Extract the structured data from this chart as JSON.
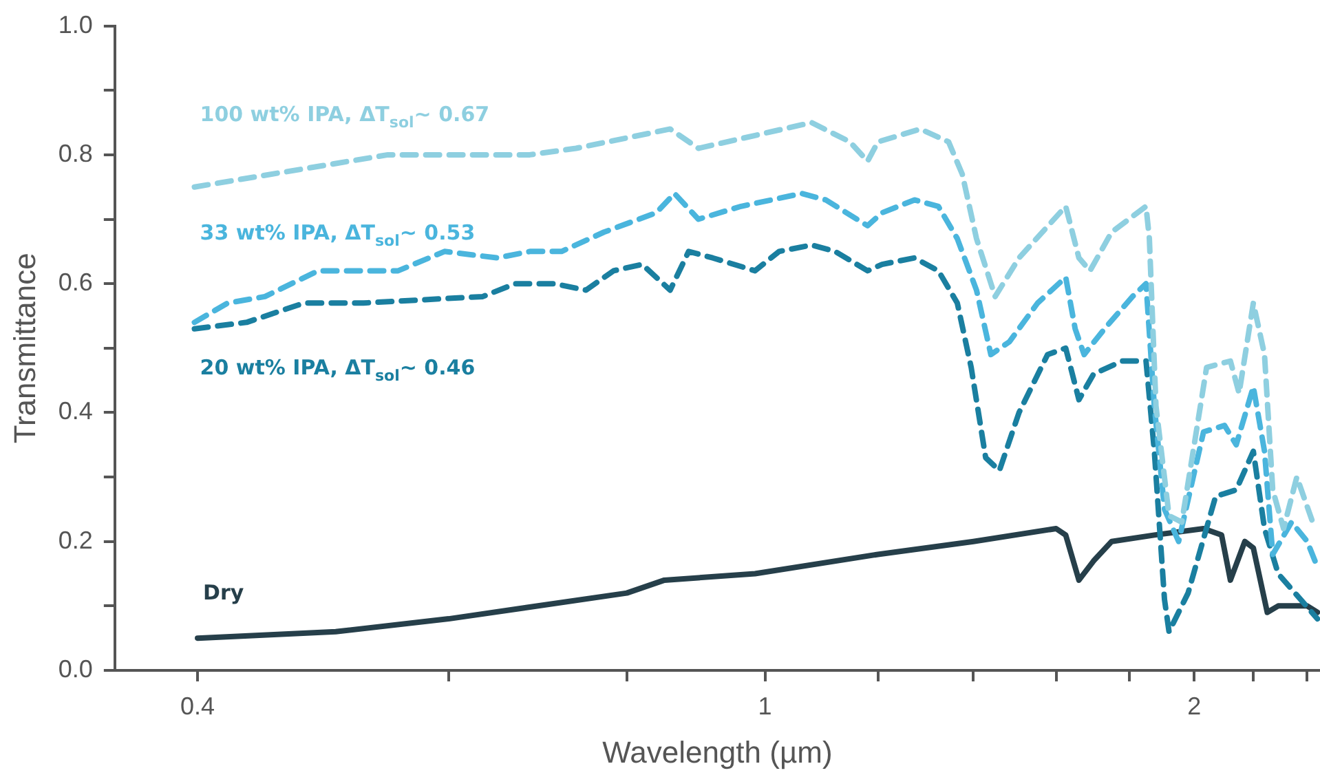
{
  "chart_data": {
    "type": "line",
    "xlabel": "Wavelength (µm)",
    "ylabel": "Transmittance",
    "log": "x",
    "grid": false,
    "legend": false,
    "marker": "none",
    "xlim": [
      0.35,
      2.45
    ],
    "xticks": [
      0.4,
      {
        "value": 0.6,
        "label": null
      },
      {
        "value": 0.8,
        "label": null
      },
      1,
      {
        "value": 1.2,
        "label": null
      },
      {
        "value": 1.4,
        "label": null
      },
      {
        "value": 1.6,
        "label": null
      },
      {
        "value": 1.8,
        "label": null
      },
      2,
      {
        "value": 2.2,
        "label": null
      },
      {
        "value": 2.4,
        "label": null
      }
    ],
    "ylim": [
      0,
      1
    ],
    "yticks": [
      {
        "value": 0,
        "label": "0.0"
      },
      {
        "value": 0.1,
        "label": null
      },
      {
        "value": 0.2,
        "label": "0.2"
      },
      {
        "value": 0.3,
        "label": null
      },
      {
        "value": 0.4,
        "label": "0.4"
      },
      {
        "value": 0.5,
        "label": null
      },
      {
        "value": 0.6,
        "label": "0.6"
      },
      {
        "value": 0.7,
        "label": null
      },
      {
        "value": 0.8,
        "label": "0.8"
      },
      {
        "value": 0.9,
        "label": null
      },
      {
        "value": 1,
        "label": "1.0"
      }
    ],
    "series": [
      {
        "name": "100 wt% IPA, ΔT$_{sol}$~ 0.67",
        "color": "#8ecfe0",
        "line_style": "dashed",
        "x": [
          0.398,
          0.544,
          0.684,
          0.737,
          0.858,
          0.898,
          0.984,
          1.078,
          1.147,
          1.18,
          1.2,
          1.285,
          1.345,
          1.375,
          1.407,
          1.45,
          1.507,
          1.625,
          1.66,
          1.69,
          1.75,
          1.85,
          1.86,
          1.88,
          1.92,
          1.96,
          2.04,
          2.12,
          2.15,
          2.2,
          2.24,
          2.27,
          2.31,
          2.36,
          2.43
        ],
        "values": [
          0.75,
          0.8,
          0.8,
          0.81,
          0.84,
          0.81,
          0.83,
          0.85,
          0.82,
          0.79,
          0.82,
          0.84,
          0.82,
          0.77,
          0.67,
          0.58,
          0.64,
          0.72,
          0.64,
          0.62,
          0.68,
          0.72,
          0.67,
          0.41,
          0.24,
          0.23,
          0.47,
          0.48,
          0.43,
          0.57,
          0.49,
          0.28,
          0.22,
          0.3,
          0.22
        ]
      },
      {
        "name": "33 wt% IPA, ΔT$_{sol}$~ 0.53",
        "color": "#4ab5dd",
        "line_style": "dashed",
        "x": [
          0.398,
          0.42,
          0.446,
          0.486,
          0.553,
          0.596,
          0.649,
          0.684,
          0.72,
          0.771,
          0.839,
          0.864,
          0.898,
          0.962,
          1.061,
          1.103,
          1.16,
          1.18,
          1.208,
          1.273,
          1.323,
          1.364,
          1.407,
          1.44,
          1.484,
          1.553,
          1.625,
          1.65,
          1.674,
          1.73,
          1.81,
          1.85,
          1.875,
          1.906,
          1.95,
          2.03,
          2.1,
          2.14,
          2.2,
          2.24,
          2.27,
          2.34,
          2.4,
          2.44
        ],
        "values": [
          0.54,
          0.57,
          0.58,
          0.62,
          0.62,
          0.65,
          0.64,
          0.65,
          0.65,
          0.68,
          0.71,
          0.74,
          0.7,
          0.72,
          0.74,
          0.73,
          0.7,
          0.69,
          0.71,
          0.73,
          0.72,
          0.67,
          0.59,
          0.49,
          0.51,
          0.57,
          0.61,
          0.53,
          0.49,
          0.53,
          0.58,
          0.6,
          0.41,
          0.25,
          0.2,
          0.37,
          0.38,
          0.35,
          0.44,
          0.34,
          0.18,
          0.23,
          0.2,
          0.16
        ]
      },
      {
        "name": "20 wt% IPA, ΔT$_{sol}$~ 0.46",
        "color": "#1a7fa0",
        "line_style": "dashed",
        "x": [
          0.398,
          0.433,
          0.475,
          0.523,
          0.634,
          0.668,
          0.711,
          0.749,
          0.783,
          0.82,
          0.858,
          0.884,
          0.919,
          0.984,
          1.023,
          1.078,
          1.12,
          1.18,
          1.208,
          1.273,
          1.323,
          1.364,
          1.395,
          1.428,
          1.46,
          1.507,
          1.578,
          1.625,
          1.66,
          1.7,
          1.78,
          1.85,
          1.875,
          1.906,
          1.92,
          1.98,
          2.07,
          2.14,
          2.2,
          2.24,
          2.29,
          2.44
        ],
        "values": [
          0.53,
          0.54,
          0.57,
          0.57,
          0.58,
          0.6,
          0.6,
          0.59,
          0.62,
          0.63,
          0.59,
          0.65,
          0.64,
          0.62,
          0.65,
          0.66,
          0.65,
          0.62,
          0.63,
          0.64,
          0.62,
          0.57,
          0.47,
          0.33,
          0.31,
          0.4,
          0.49,
          0.5,
          0.42,
          0.46,
          0.48,
          0.48,
          0.34,
          0.11,
          0.06,
          0.12,
          0.27,
          0.28,
          0.34,
          0.22,
          0.15,
          0.08
        ]
      },
      {
        "name": "Dry",
        "color": "#263f4a",
        "line_style": "solid",
        "x": [
          0.4,
          0.5,
          0.6,
          0.8,
          0.85,
          0.984,
          1.2,
          1.4,
          1.6,
          1.625,
          1.66,
          1.7,
          1.75,
          1.875,
          2.03,
          2.09,
          2.12,
          2.17,
          2.2,
          2.25,
          2.29,
          2.4,
          2.44
        ],
        "values": [
          0.05,
          0.06,
          0.08,
          0.12,
          0.14,
          0.15,
          0.18,
          0.2,
          0.22,
          0.21,
          0.14,
          0.17,
          0.2,
          0.21,
          0.22,
          0.21,
          0.14,
          0.2,
          0.19,
          0.09,
          0.1,
          0.1,
          0.09
        ]
      }
    ]
  }
}
